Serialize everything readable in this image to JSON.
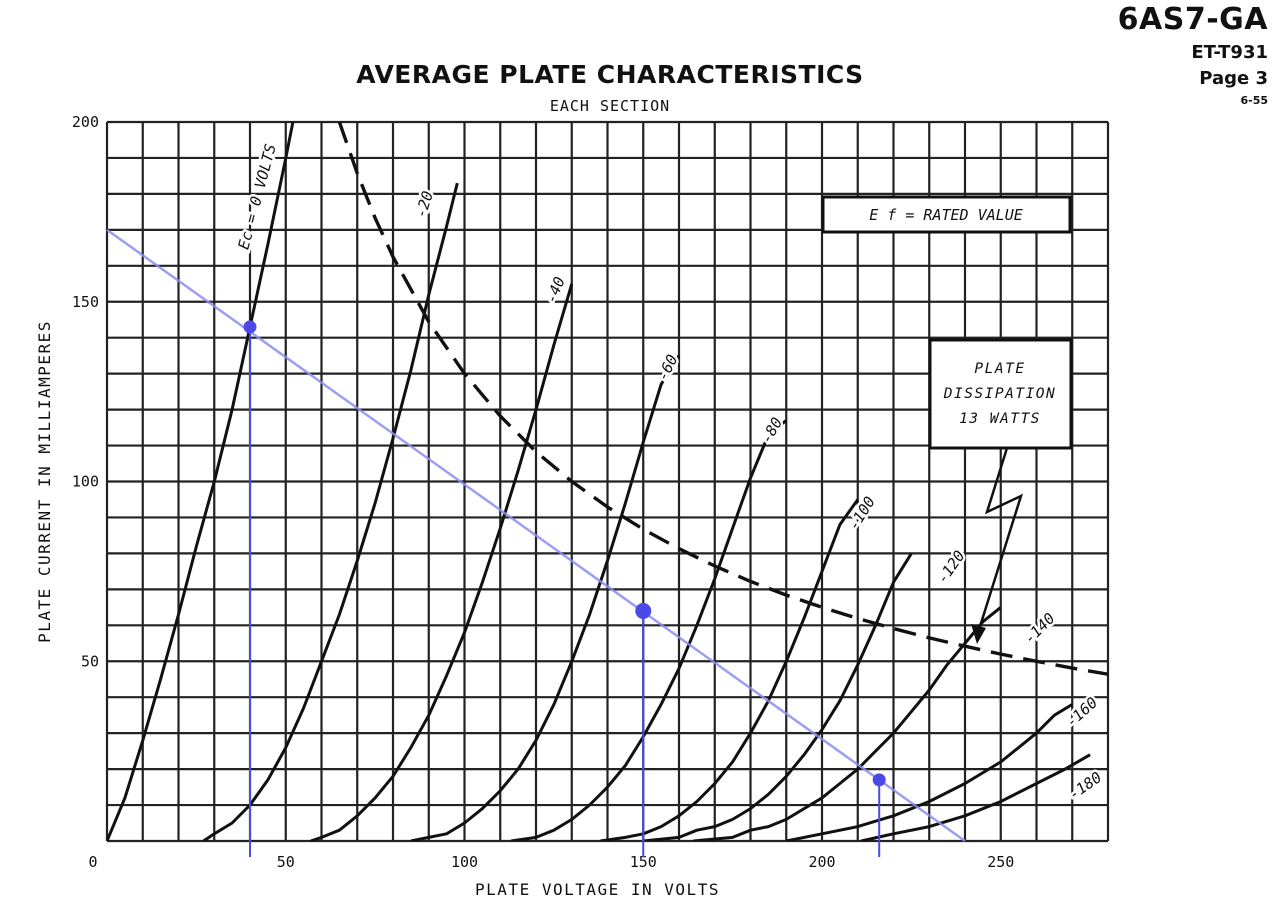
{
  "header": {
    "tube_type": "6AS7-GA",
    "doc_code": "ET-T931",
    "page": "Page 3",
    "date": "6-55"
  },
  "chart_data": {
    "type": "line",
    "title": "AVERAGE PLATE CHARACTERISTICS",
    "subtitle": "EACH SECTION",
    "xlabel": "PLATE VOLTAGE IN VOLTS",
    "ylabel": "PLATE CURRENT IN MILLIAMPERES",
    "xlim": [
      0,
      280
    ],
    "ylim": [
      0,
      200
    ],
    "x_ticks": [
      0,
      50,
      100,
      150,
      200,
      250
    ],
    "y_ticks": [
      50,
      100,
      150,
      200
    ],
    "grid": true,
    "rated_value_label": "E f = RATED VALUE",
    "series": [
      {
        "name": "Ec = 0 VOLTS",
        "points": [
          [
            0,
            0
          ],
          [
            5,
            12
          ],
          [
            10,
            28
          ],
          [
            15,
            45
          ],
          [
            20,
            63
          ],
          [
            25,
            82
          ],
          [
            30,
            100
          ],
          [
            35,
            120
          ],
          [
            40,
            143
          ],
          [
            45,
            166
          ],
          [
            50,
            190
          ],
          [
            52,
            200
          ]
        ]
      },
      {
        "name": "-20",
        "points": [
          [
            27,
            0
          ],
          [
            30,
            2
          ],
          [
            35,
            5
          ],
          [
            40,
            10
          ],
          [
            45,
            17
          ],
          [
            50,
            26
          ],
          [
            55,
            37
          ],
          [
            60,
            50
          ],
          [
            65,
            63
          ],
          [
            70,
            78
          ],
          [
            75,
            94
          ],
          [
            80,
            112
          ],
          [
            85,
            131
          ],
          [
            90,
            152
          ],
          [
            95,
            171
          ],
          [
            98,
            183
          ]
        ]
      },
      {
        "name": "-40",
        "points": [
          [
            57,
            0
          ],
          [
            60,
            1
          ],
          [
            65,
            3
          ],
          [
            70,
            7
          ],
          [
            75,
            12
          ],
          [
            80,
            18
          ],
          [
            85,
            26
          ],
          [
            90,
            35
          ],
          [
            95,
            46
          ],
          [
            100,
            58
          ],
          [
            105,
            72
          ],
          [
            110,
            87
          ],
          [
            115,
            103
          ],
          [
            120,
            120
          ],
          [
            125,
            138
          ],
          [
            130,
            155
          ]
        ]
      },
      {
        "name": "-60",
        "points": [
          [
            85,
            0
          ],
          [
            90,
            1
          ],
          [
            95,
            2
          ],
          [
            100,
            5
          ],
          [
            105,
            9
          ],
          [
            110,
            14
          ],
          [
            115,
            20
          ],
          [
            120,
            28
          ],
          [
            125,
            38
          ],
          [
            130,
            50
          ],
          [
            135,
            63
          ],
          [
            140,
            78
          ],
          [
            145,
            94
          ],
          [
            150,
            111
          ],
          [
            155,
            127
          ],
          [
            160,
            135
          ]
        ]
      },
      {
        "name": "-80",
        "points": [
          [
            113,
            0
          ],
          [
            120,
            1
          ],
          [
            125,
            3
          ],
          [
            130,
            6
          ],
          [
            135,
            10
          ],
          [
            140,
            15
          ],
          [
            145,
            21
          ],
          [
            150,
            29
          ],
          [
            155,
            38
          ],
          [
            160,
            48
          ],
          [
            165,
            60
          ],
          [
            170,
            73
          ],
          [
            175,
            87
          ],
          [
            180,
            101
          ],
          [
            185,
            113
          ],
          [
            190,
            117
          ]
        ]
      },
      {
        "name": "-100",
        "points": [
          [
            138,
            0
          ],
          [
            145,
            1
          ],
          [
            150,
            2
          ],
          [
            155,
            4
          ],
          [
            160,
            7
          ],
          [
            165,
            11
          ],
          [
            170,
            16
          ],
          [
            175,
            22
          ],
          [
            180,
            30
          ],
          [
            185,
            39
          ],
          [
            190,
            50
          ],
          [
            195,
            62
          ],
          [
            200,
            75
          ],
          [
            205,
            88
          ],
          [
            210,
            95
          ]
        ]
      },
      {
        "name": "-120",
        "points": [
          [
            150,
            0
          ],
          [
            160,
            1
          ],
          [
            165,
            3
          ],
          [
            170,
            4
          ],
          [
            175,
            6
          ],
          [
            180,
            9
          ],
          [
            185,
            13
          ],
          [
            190,
            18
          ],
          [
            195,
            24
          ],
          [
            200,
            31
          ],
          [
            205,
            39
          ],
          [
            210,
            49
          ],
          [
            215,
            60
          ],
          [
            220,
            72
          ],
          [
            225,
            80
          ]
        ]
      },
      {
        "name": "-140",
        "points": [
          [
            164,
            0
          ],
          [
            175,
            1
          ],
          [
            180,
            3
          ],
          [
            185,
            4
          ],
          [
            190,
            6
          ],
          [
            195,
            9
          ],
          [
            200,
            12
          ],
          [
            205,
            16
          ],
          [
            210,
            20
          ],
          [
            215,
            25
          ],
          [
            220,
            30
          ],
          [
            225,
            36
          ],
          [
            230,
            42
          ],
          [
            235,
            49
          ],
          [
            240,
            55
          ],
          [
            245,
            61
          ],
          [
            250,
            65
          ]
        ]
      },
      {
        "name": "-160",
        "points": [
          [
            190,
            0
          ],
          [
            200,
            2
          ],
          [
            210,
            4
          ],
          [
            220,
            7
          ],
          [
            230,
            11
          ],
          [
            240,
            16
          ],
          [
            250,
            22
          ],
          [
            260,
            30
          ],
          [
            265,
            35
          ],
          [
            270,
            38
          ]
        ]
      },
      {
        "name": "-180",
        "points": [
          [
            211,
            0
          ],
          [
            220,
            2
          ],
          [
            230,
            4
          ],
          [
            240,
            7
          ],
          [
            250,
            11
          ],
          [
            260,
            16
          ],
          [
            268,
            20
          ],
          [
            275,
            24
          ]
        ]
      }
    ],
    "dissipation_curve": {
      "name": "PLATE DISSIPATION 13 WATTS",
      "points": [
        [
          65,
          200
        ],
        [
          70,
          185.7
        ],
        [
          75,
          173.3
        ],
        [
          80,
          162.5
        ],
        [
          90,
          144.4
        ],
        [
          100,
          130
        ],
        [
          110,
          118.2
        ],
        [
          120,
          108.3
        ],
        [
          130,
          100
        ],
        [
          140,
          92.9
        ],
        [
          150,
          86.7
        ],
        [
          160,
          81.3
        ],
        [
          170,
          76.5
        ],
        [
          180,
          72.2
        ],
        [
          190,
          68.4
        ],
        [
          200,
          65
        ],
        [
          210,
          61.9
        ],
        [
          220,
          59.1
        ],
        [
          230,
          56.5
        ],
        [
          240,
          54.2
        ],
        [
          250,
          52
        ],
        [
          260,
          50
        ],
        [
          270,
          48.1
        ],
        [
          280,
          46.4
        ]
      ]
    },
    "annotations": {
      "plate": "PLATE",
      "dissipation": "DISSIPATION",
      "watts": "13 WATTS"
    },
    "load_line": {
      "color": "#8c8cf0",
      "points": [
        [
          0,
          170
        ],
        [
          240,
          0
        ]
      ]
    },
    "marked_points": {
      "color": "#4a4ae6",
      "points": [
        [
          40,
          143
        ],
        [
          150,
          64
        ],
        [
          216,
          17
        ]
      ]
    }
  }
}
